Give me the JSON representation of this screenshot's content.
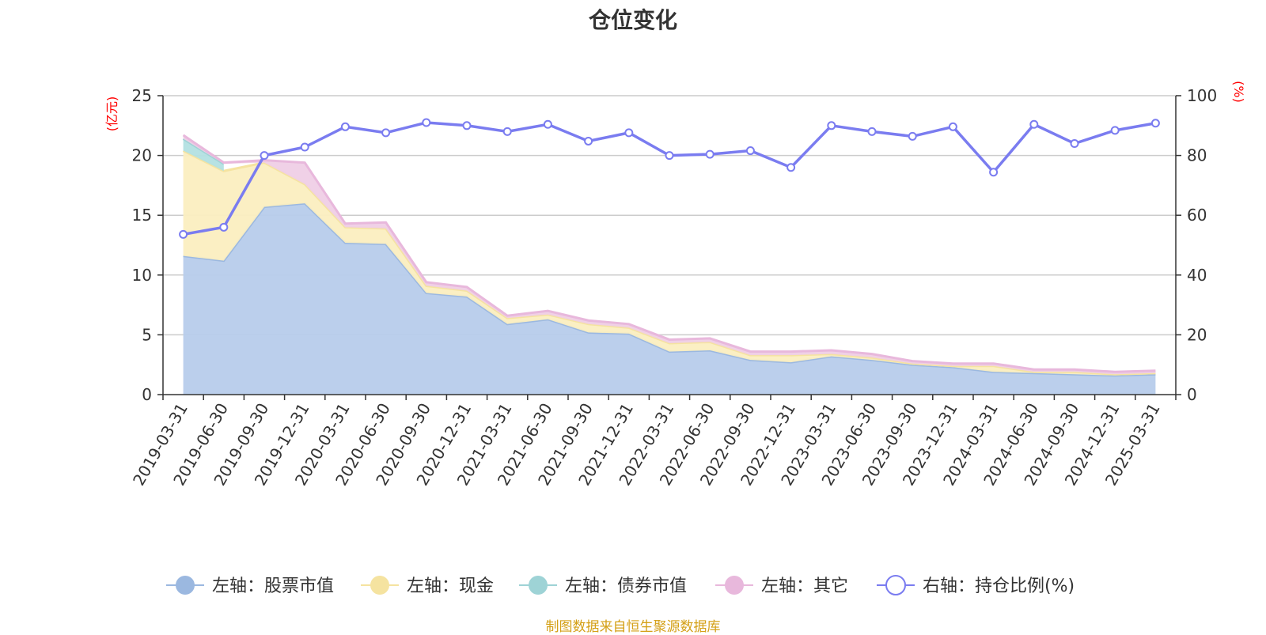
{
  "chart_data": {
    "type": "area",
    "title": "仓位变化",
    "left_unit": "(亿元)",
    "right_unit": "(%)",
    "y_left_lim": [
      0,
      25
    ],
    "y_left_ticks": [
      0,
      5,
      10,
      15,
      20,
      25
    ],
    "y_right_lim": [
      0,
      100
    ],
    "y_right_ticks": [
      0,
      20,
      40,
      60,
      80,
      100
    ],
    "grid": true,
    "legend_position": "bottom",
    "categories": [
      "2019-03-31",
      "2019-06-30",
      "2019-09-30",
      "2019-12-31",
      "2020-03-31",
      "2020-06-30",
      "2020-09-30",
      "2020-12-31",
      "2021-03-31",
      "2021-06-30",
      "2021-09-30",
      "2021-12-31",
      "2022-03-31",
      "2022-06-30",
      "2022-09-30",
      "2022-12-31",
      "2023-03-31",
      "2023-06-30",
      "2023-09-30",
      "2023-12-31",
      "2024-03-31",
      "2024-06-30",
      "2024-09-30",
      "2024-12-31",
      "2025-03-31"
    ],
    "series": [
      {
        "name": "左轴：股票市值",
        "axis": "left",
        "kind": "stacked-area",
        "color": "#9bb8e0",
        "fill": "#b7cceb",
        "values": [
          11.6,
          11.2,
          15.7,
          16.0,
          12.7,
          12.6,
          8.5,
          8.2,
          5.9,
          6.3,
          5.2,
          5.1,
          3.6,
          3.7,
          2.9,
          2.7,
          3.2,
          2.9,
          2.5,
          2.3,
          1.9,
          1.8,
          1.7,
          1.6,
          1.7
        ]
      },
      {
        "name": "左轴：现金",
        "axis": "left",
        "kind": "stacked-area",
        "color": "#f5e3a0",
        "fill": "#fbeec0",
        "values": [
          8.8,
          7.5,
          3.7,
          1.6,
          1.3,
          1.3,
          0.6,
          0.5,
          0.5,
          0.4,
          0.7,
          0.5,
          0.7,
          0.7,
          0.4,
          0.6,
          0.2,
          0.2,
          0.1,
          0.1,
          0.5,
          0.1,
          0.2,
          0.1,
          0.1
        ]
      },
      {
        "name": "左轴：债券市值",
        "axis": "left",
        "kind": "stacked-area",
        "color": "#9ed3d6",
        "fill": "#b3e0e2",
        "values": [
          1.0,
          0.6,
          0,
          0,
          0,
          0,
          0,
          0,
          0,
          0,
          0,
          0,
          0,
          0,
          0,
          0,
          0,
          0,
          0,
          0,
          0,
          0,
          0,
          0,
          0
        ]
      },
      {
        "name": "左轴：其它",
        "axis": "left",
        "kind": "stacked-area",
        "color": "#e8b8dc",
        "fill": "#efcfe6",
        "values": [
          0.3,
          0.1,
          0.2,
          1.8,
          0.3,
          0.5,
          0.3,
          0.3,
          0.2,
          0.3,
          0.3,
          0.3,
          0.3,
          0.3,
          0.3,
          0.3,
          0.3,
          0.3,
          0.2,
          0.2,
          0.2,
          0.2,
          0.2,
          0.2,
          0.2
        ]
      },
      {
        "name": "右轴：持仓比例(%)",
        "axis": "right",
        "kind": "line",
        "color": "#7a7cf0",
        "values": [
          53.6,
          56.0,
          80.0,
          82.8,
          89.6,
          87.6,
          91.0,
          90.0,
          88.0,
          90.4,
          84.8,
          87.6,
          80.0,
          80.4,
          81.6,
          76.0,
          90.0,
          88.0,
          86.4,
          89.6,
          74.4,
          90.4,
          84.0,
          88.4,
          90.8
        ]
      }
    ],
    "source_note": "制图数据来自恒生聚源数据库"
  }
}
